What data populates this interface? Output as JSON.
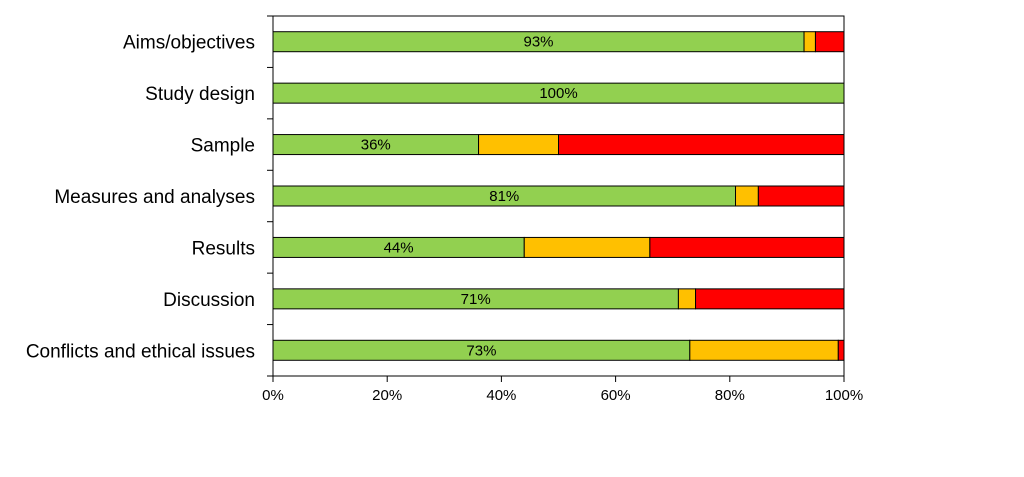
{
  "chart_data": {
    "type": "bar",
    "orientation": "horizontal",
    "stacked": true,
    "title": "",
    "xlabel": "",
    "ylabel": "",
    "xlim": [
      0,
      100
    ],
    "x_ticks": [
      "0%",
      "20%",
      "40%",
      "60%",
      "80%",
      "100%"
    ],
    "x_tick_values": [
      0,
      20,
      40,
      60,
      80,
      100
    ],
    "grid": false,
    "legend": "none",
    "categories": [
      "Aims/objectives",
      "Study design",
      "Sample",
      "Measures and analyses",
      "Results",
      "Discussion",
      "Conflicts and ethical issues"
    ],
    "series": [
      {
        "color": "#92d050",
        "values": [
          93,
          100,
          36,
          81,
          44,
          71,
          73
        ]
      },
      {
        "color": "#ffc000",
        "values": [
          2,
          0,
          14,
          4,
          22,
          3,
          26
        ]
      },
      {
        "color": "#ff0000",
        "values": [
          5,
          0,
          50,
          15,
          34,
          26,
          1
        ]
      }
    ],
    "data_labels": [
      "93%",
      "100%",
      "36%",
      "81%",
      "44%",
      "71%",
      "73%"
    ]
  }
}
